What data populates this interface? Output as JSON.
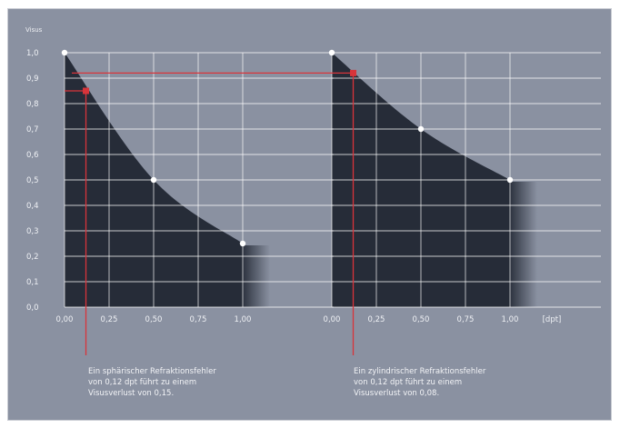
{
  "colors": {
    "background": "#8a91a1",
    "grid": "#ffffff",
    "area": "#262c38",
    "highlight": "#d8343a",
    "point": "#ffffff",
    "text": "#eef0f4"
  },
  "chart_data": [
    {
      "type": "area",
      "ylabel": "Visus",
      "xlabel": "",
      "ylim": [
        0,
        1.0
      ],
      "xlim": [
        0,
        1.0
      ],
      "yticks": [
        "1,0",
        "0,9",
        "0,8",
        "0,7",
        "0,6",
        "0,5",
        "0,4",
        "0,3",
        "0,2",
        "0,1",
        "0,0"
      ],
      "xticks": [
        "0,00",
        "0,25",
        "0,50",
        "0,75",
        "1,00"
      ],
      "grid": true,
      "points": [
        {
          "x": 0.0,
          "y": 1.0
        },
        {
          "x": 0.5,
          "y": 0.5
        },
        {
          "x": 1.0,
          "y": 0.25
        }
      ],
      "highlight": {
        "x": 0.12,
        "y": 0.85
      },
      "caption": [
        "Ein sphärischer Refraktionsfehler",
        "von 0,12 dpt führt zu einem",
        "Visusverlust von 0,15."
      ]
    },
    {
      "type": "area",
      "ylabel": "",
      "xlabel": "[dpt]",
      "ylim": [
        0,
        1.0
      ],
      "xlim": [
        0,
        1.0
      ],
      "xticks": [
        "0,00",
        "0,25",
        "0,50",
        "0,75",
        "1,00"
      ],
      "grid": true,
      "points": [
        {
          "x": 0.0,
          "y": 1.0
        },
        {
          "x": 0.5,
          "y": 0.7
        },
        {
          "x": 1.0,
          "y": 0.5
        }
      ],
      "highlight": {
        "x": 0.12,
        "y": 0.92
      },
      "caption": [
        "Ein zylindrischer Refraktionsfehler",
        "von 0,12 dpt führt zu einem",
        "Visusverlust von 0,08."
      ]
    }
  ]
}
